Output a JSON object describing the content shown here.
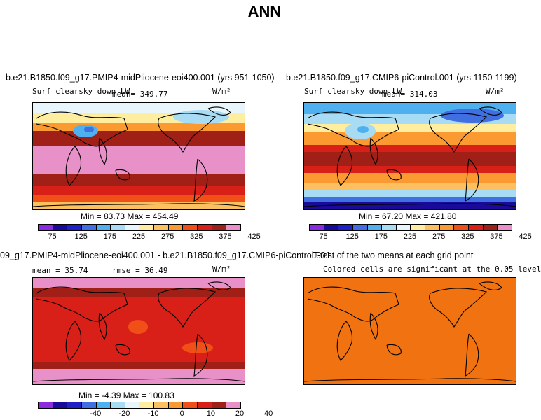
{
  "figure_title": "ANN",
  "panels": [
    {
      "title": "b.e21.B1850.f09_g17.PMIP4-midPliocene-eoi400.001 (yrs 951-1050)",
      "left_label": "Surf clearsky down LW",
      "mean_label": "mean= 349.77",
      "units": "W/m²",
      "minmax": "Min =  83.73 Max = 454.49"
    },
    {
      "title": "b.e21.B1850.f09_g17.CMIP6-piControl.001 (yrs 1150-1199)",
      "left_label": "Surf clearsky down LW",
      "mean_label": "mean= 314.03",
      "units": "W/m²",
      "minmax": "Min =  67.20 Max = 421.80"
    },
    {
      "title": "09_g17.PMIP4-midPliocene-eoi400.001 - b.e21.B1850.f09_g17.CMIP6-piControl.001",
      "left_label": "mean =  35.74",
      "mean_label": "rmse =  36.49",
      "units": "W/m²",
      "minmax": "Min =  -4.39 Max = 100.83"
    },
    {
      "title": "T-test of the two means at each grid point",
      "subtitle": "Colored cells are significant at the 0.05 level"
    }
  ],
  "colorbar_abs": {
    "colors": [
      "#8a2be2",
      "#1a0a9a",
      "#2020c8",
      "#3f6fe0",
      "#4fb0f0",
      "#a8dcf5",
      "#e8f6fb",
      "#ffeea0",
      "#fcc060",
      "#fa9a30",
      "#f05018",
      "#d82018",
      "#a02018",
      "#e890c8"
    ],
    "tick_labels": [
      "75",
      "125",
      "175",
      "225",
      "275",
      "325",
      "375",
      "425"
    ]
  },
  "colorbar_diff": {
    "colors": [
      "#8a2be2",
      "#1a0a9a",
      "#2020c8",
      "#3f6fe0",
      "#4fb0f0",
      "#a8dcf5",
      "#e8f6fb",
      "#ffeea0",
      "#fcc060",
      "#fa9a30",
      "#f05018",
      "#d82018",
      "#a02018",
      "#e890c8"
    ],
    "tick_labels": [
      "-40",
      "-20",
      "-10",
      "0",
      "10",
      "20",
      "40"
    ]
  },
  "chart_data": [
    {
      "type": "heatmap",
      "title": "b.e21.B1850.f09_g17.PMIP4-midPliocene-eoi400.001 (yrs 951-1050)",
      "variable": "Surf clearsky down LW",
      "units": "W/m2",
      "mean": 349.77,
      "min": 83.73,
      "max": 454.49,
      "colorbar_ticks": [
        75,
        125,
        175,
        225,
        275,
        325,
        375,
        425
      ]
    },
    {
      "type": "heatmap",
      "title": "b.e21.B1850.f09_g17.CMIP6-piControl.001 (yrs 1150-1199)",
      "variable": "Surf clearsky down LW",
      "units": "W/m2",
      "mean": 314.03,
      "min": 67.2,
      "max": 421.8,
      "colorbar_ticks": [
        75,
        125,
        175,
        225,
        275,
        325,
        375,
        425
      ]
    },
    {
      "type": "heatmap",
      "title": "09_g17.PMIP4-midPliocene-eoi400.001 - b.e21.B1850.f09_g17.CMIP6-piControl.001",
      "units": "W/m2",
      "mean": 35.74,
      "rmse": 36.49,
      "min": -4.39,
      "max": 100.83,
      "colorbar_ticks": [
        -40,
        -20,
        -10,
        0,
        10,
        20,
        40
      ]
    },
    {
      "type": "heatmap",
      "title": "T-test of the two means at each grid point",
      "note": "Colored cells are significant at the 0.05 level"
    }
  ]
}
